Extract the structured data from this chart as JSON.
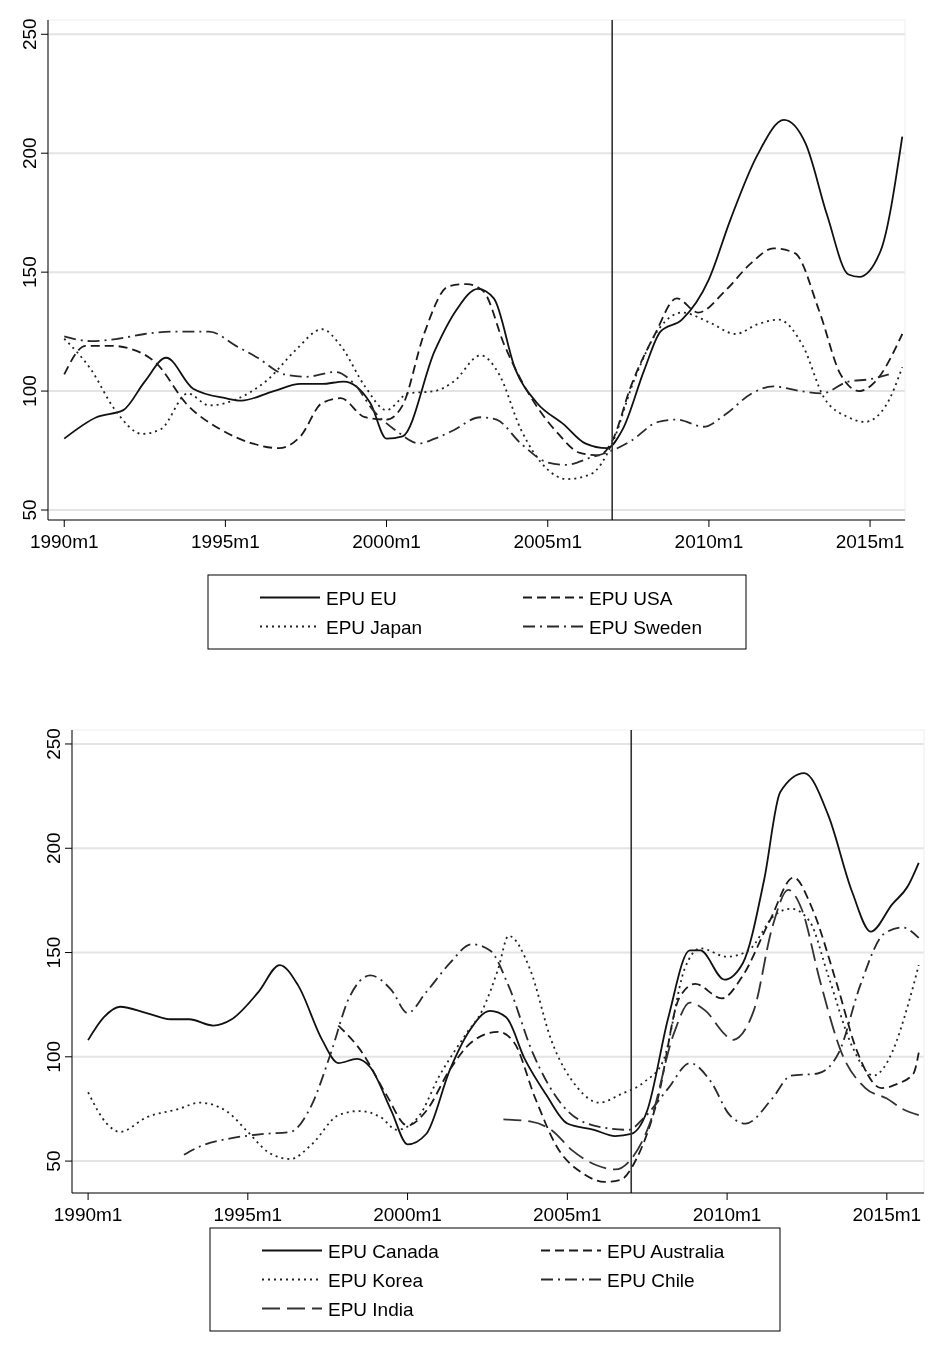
{
  "chart_data": [
    {
      "type": "line",
      "xlim": [
        "1989-07",
        "2016-02"
      ],
      "ylim": [
        45.8,
        256
      ],
      "grid": "y",
      "legend": "bottom",
      "xticks": [
        {
          "value": "1990-01",
          "label": "1990m1"
        },
        {
          "value": "1995-01",
          "label": "1995m1"
        },
        {
          "value": "2000-01",
          "label": "2000m1"
        },
        {
          "value": "2005-01",
          "label": "2005m1"
        },
        {
          "value": "2010-01",
          "label": "2010m1"
        },
        {
          "value": "2015-01",
          "label": "2015m1"
        }
      ],
      "yticks": [
        50,
        100,
        150,
        200,
        250
      ],
      "ref_lines": [
        {
          "axis": "x",
          "value": "2007-01",
          "color": "#333333"
        }
      ],
      "series": [
        {
          "name": "EPU EU",
          "color": "#111111",
          "line_style": "solid",
          "x": [
            "1990-01",
            "1991-01",
            "1991-11",
            "1992-07",
            "1993-03",
            "1994-01",
            "1995-01",
            "1995-07",
            "1996-07",
            "1997-05",
            "1998-01",
            "1998-09",
            "1999-07",
            "2000-01",
            "2000-07",
            "2001-07",
            "2002-03",
            "2002-11",
            "2003-05",
            "2004-01",
            "2004-09",
            "2005-07",
            "2006-03",
            "2006-11",
            "2007-05",
            "2008-01",
            "2008-07",
            "2009-03",
            "2010-01",
            "2010-09",
            "2011-07",
            "2012-05",
            "2013-01",
            "2013-09",
            "2014-05",
            "2014-09",
            "2015-05",
            "2016-01"
          ],
          "values": [
            80,
            89,
            92,
            104,
            114,
            101,
            97,
            96,
            100,
            103,
            103,
            104,
            95,
            80,
            81,
            117,
            134,
            143,
            139,
            109,
            95,
            86,
            78,
            76,
            84,
            109,
            125,
            130,
            147,
            172,
            199,
            214,
            204,
            174,
            149,
            148,
            159,
            207
          ]
        },
        {
          "name": "EPU USA",
          "color": "#1a1a1a",
          "line_style": "dashed",
          "x": [
            "1990-01",
            "1990-09",
            "1991-07",
            "1992-01",
            "1992-11",
            "1993-11",
            "1994-11",
            "1995-11",
            "1996-09",
            "1997-05",
            "1998-01",
            "1998-08",
            "1999-05",
            "2000-01",
            "2000-07",
            "2001-03",
            "2001-12",
            "2002-07",
            "2003-01",
            "2003-09",
            "2004-07",
            "2005-05",
            "2006-01",
            "2006-08",
            "2007-01",
            "2007-08",
            "2008-05",
            "2009-01",
            "2009-09",
            "2010-07",
            "2011-05",
            "2012-01",
            "2012-09",
            "2013-06",
            "2014-02",
            "2014-09",
            "2015-03",
            "2016-01"
          ],
          "values": [
            107,
            119,
            119,
            118,
            112,
            94,
            84,
            78,
            76,
            81,
            95,
            97,
            89,
            88,
            94,
            124,
            144,
            145,
            142,
            119,
            97,
            82,
            74,
            73,
            79,
            102,
            124,
            139,
            133,
            142,
            154,
            160,
            158,
            134,
            107,
            100,
            104,
            124
          ]
        },
        {
          "name": "EPU Japan",
          "color": "#222222",
          "line_style": "dotted",
          "x": [
            "1990-01",
            "1990-11",
            "1991-08",
            "1992-06",
            "1993-01",
            "1993-11",
            "1994-07",
            "1995-06",
            "1996-05",
            "1997-03",
            "1998-01",
            "1998-08",
            "1999-05",
            "2000-01",
            "2000-09",
            "2001-07",
            "2002-02",
            "2002-12",
            "2003-07",
            "2004-03",
            "2005-01",
            "2005-08",
            "2006-05",
            "2007-01",
            "2007-09",
            "2008-07",
            "2009-03",
            "2010-01",
            "2010-11",
            "2011-07",
            "2012-03",
            "2012-12",
            "2013-08",
            "2014-05",
            "2014-11",
            "2015-07",
            "2016-01"
          ],
          "values": [
            122,
            109,
            92,
            82,
            84,
            99,
            94,
            97,
            105,
            117,
            126,
            119,
            102,
            92,
            99,
            100,
            104,
            115,
            107,
            84,
            67,
            63,
            65,
            78,
            104,
            127,
            133,
            129,
            124,
            128,
            130,
            119,
            97,
            89,
            87,
            94,
            110
          ]
        },
        {
          "name": "EPU Sweden",
          "color": "#2a2a2a",
          "line_style": "dashdot",
          "x": [
            "1990-01",
            "1990-11",
            "1991-09",
            "1992-07",
            "1993-05",
            "1994-07",
            "1995-05",
            "1996-01",
            "1996-11",
            "1997-07",
            "1998-06",
            "1999-01",
            "1999-08",
            "2000-05",
            "2001-01",
            "2001-07",
            "2002-01",
            "2002-12",
            "2003-06",
            "2004-03",
            "2005-01",
            "2005-08",
            "2006-05",
            "2007-01",
            "2007-08",
            "2008-06",
            "2009-01",
            "2009-11",
            "2010-07",
            "2011-05",
            "2012-01",
            "2012-11",
            "2013-07",
            "2014-05",
            "2015-01",
            "2015-08"
          ],
          "values": [
            123,
            121,
            122,
            124,
            125,
            125,
            119,
            114,
            107,
            106,
            108,
            103,
            92,
            83,
            78,
            80,
            83,
            89,
            88,
            78,
            70,
            69,
            72,
            75,
            79,
            87,
            88,
            85,
            90,
            99,
            102,
            100,
            99,
            104,
            105,
            107
          ]
        }
      ]
    },
    {
      "type": "line",
      "xlim": [
        "1989-07",
        "2016-03"
      ],
      "ylim": [
        34.7,
        256.7
      ],
      "grid": "y",
      "legend": "bottom",
      "xticks": [
        {
          "value": "1990-01",
          "label": "1990m1"
        },
        {
          "value": "1995-01",
          "label": "1995m1"
        },
        {
          "value": "2000-01",
          "label": "2000m1"
        },
        {
          "value": "2005-01",
          "label": "2005m1"
        },
        {
          "value": "2010-01",
          "label": "2010m1"
        },
        {
          "value": "2015-01",
          "label": "2015m1"
        }
      ],
      "yticks": [
        50,
        100,
        150,
        200,
        250
      ],
      "ref_lines": [
        {
          "axis": "x",
          "value": "2007-01",
          "color": "#333333"
        }
      ],
      "series": [
        {
          "name": "EPU Canada",
          "color": "#111111",
          "line_style": "solid",
          "x": [
            "1990-01",
            "1990-07",
            "1991-01",
            "1991-11",
            "1992-08",
            "1993-03",
            "1993-12",
            "1994-07",
            "1995-05",
            "1996-01",
            "1996-08",
            "1997-05",
            "1997-11",
            "1998-06",
            "1998-11",
            "1999-07",
            "2000-01",
            "2000-08",
            "2001-05",
            "2001-12",
            "2002-08",
            "2003-02",
            "2003-09",
            "2004-05",
            "2005-01",
            "2005-11",
            "2006-07",
            "2007-01",
            "2007-07",
            "2008-03",
            "2008-11",
            "2009-03",
            "2009-12",
            "2010-07",
            "2011-03",
            "2011-09",
            "2012-06",
            "2013-03",
            "2013-12",
            "2014-07",
            "2015-03",
            "2015-09",
            "2016-01"
          ],
          "values": [
            108,
            119,
            124,
            121,
            118,
            118,
            115,
            118,
            131,
            144,
            134,
            108,
            97,
            99,
            95,
            74,
            58,
            63,
            94,
            112,
            122,
            119,
            99,
            82,
            68,
            65,
            62,
            63,
            74,
            119,
            151,
            151,
            137,
            145,
            185,
            227,
            236,
            216,
            179,
            160,
            173,
            182,
            193
          ]
        },
        {
          "name": "EPU Australia",
          "color": "#1a1a1a",
          "line_style": "dashed",
          "x": [
            "1997-11",
            "1998-08",
            "1999-05",
            "2000-01",
            "2000-08",
            "2001-05",
            "2002-01",
            "2002-11",
            "2003-05",
            "2004-01",
            "2004-09",
            "2005-07",
            "2006-03",
            "2006-09",
            "2007-03",
            "2007-11",
            "2008-07",
            "2009-01",
            "2009-11",
            "2010-07",
            "2011-05",
            "2012-02",
            "2012-09",
            "2013-06",
            "2014-02",
            "2014-11",
            "2015-05",
            "2015-11",
            "2016-01"
          ],
          "values": [
            115,
            102,
            82,
            67,
            74,
            94,
            107,
            112,
            107,
            80,
            57,
            44,
            40,
            41,
            51,
            80,
            128,
            135,
            128,
            139,
            165,
            186,
            171,
            136,
            102,
            85,
            87,
            92,
            102
          ]
        },
        {
          "name": "EPU Korea",
          "color": "#222222",
          "line_style": "dotted",
          "x": [
            "1990-01",
            "1990-08",
            "1991-01",
            "1991-11",
            "1992-11",
            "1993-07",
            "1994-05",
            "1995-01",
            "1995-09",
            "1996-05",
            "1997-01",
            "1997-11",
            "1998-07",
            "1999-03",
            "1999-09",
            "2000-05",
            "2001-01",
            "2001-11",
            "2002-05",
            "2002-11",
            "2003-03",
            "2003-11",
            "2004-07",
            "2005-05",
            "2006-01",
            "2006-09",
            "2007-06",
            "2008-01",
            "2008-09",
            "2009-03",
            "2010-01",
            "2010-09",
            "2011-07",
            "2012-01",
            "2012-08",
            "2013-03",
            "2013-12",
            "2014-08",
            "2015-03",
            "2015-09",
            "2016-01"
          ],
          "values": [
            83,
            68,
            64,
            71,
            75,
            78,
            74,
            64,
            54,
            51,
            58,
            72,
            74,
            71,
            65,
            71,
            91,
            111,
            122,
            142,
            158,
            142,
            108,
            85,
            78,
            82,
            88,
            98,
            142,
            152,
            148,
            151,
            168,
            171,
            165,
            139,
            105,
            91,
            102,
            125,
            144
          ]
        },
        {
          "name": "EPU Chile",
          "color": "#2a2a2a",
          "line_style": "dashdot",
          "x": [
            "1993-01",
            "1993-07",
            "1994-07",
            "1995-07",
            "1996-05",
            "1997-01",
            "1997-08",
            "1998-03",
            "1998-11",
            "1999-07",
            "2000-01",
            "2000-08",
            "2001-05",
            "2002-01",
            "2002-08",
            "2003-03",
            "2003-12",
            "2004-11",
            "2005-11",
            "2006-12",
            "2007-06",
            "2008-03",
            "2008-11",
            "2009-07",
            "2010-02",
            "2010-08",
            "2011-06",
            "2012-01",
            "2012-11",
            "2013-07",
            "2014-03",
            "2014-12",
            "2015-07",
            "2016-01"
          ],
          "values": [
            53,
            57,
            61,
            63,
            64,
            77,
            101,
            128,
            139,
            132,
            121,
            131,
            145,
            154,
            151,
            134,
            102,
            77,
            67,
            65,
            71,
            85,
            97,
            88,
            72,
            68,
            80,
            91,
            92,
            102,
            134,
            159,
            162,
            157
          ]
        },
        {
          "name": "EPU India",
          "color": "#333333",
          "line_style": "longdash",
          "x": [
            "2003-01",
            "2003-11",
            "2004-07",
            "2005-03",
            "2005-12",
            "2006-07",
            "2007-01",
            "2007-08",
            "2008-05",
            "2008-11",
            "2009-05",
            "2009-12",
            "2010-03",
            "2010-11",
            "2011-06",
            "2011-12",
            "2012-05",
            "2012-12",
            "2013-08",
            "2014-05",
            "2015-01",
            "2015-07",
            "2016-01"
          ],
          "values": [
            70,
            69,
            65,
            55,
            48,
            46,
            51,
            68,
            111,
            126,
            122,
            111,
            108,
            122,
            162,
            180,
            171,
            136,
            102,
            85,
            80,
            75,
            72
          ]
        }
      ]
    }
  ]
}
